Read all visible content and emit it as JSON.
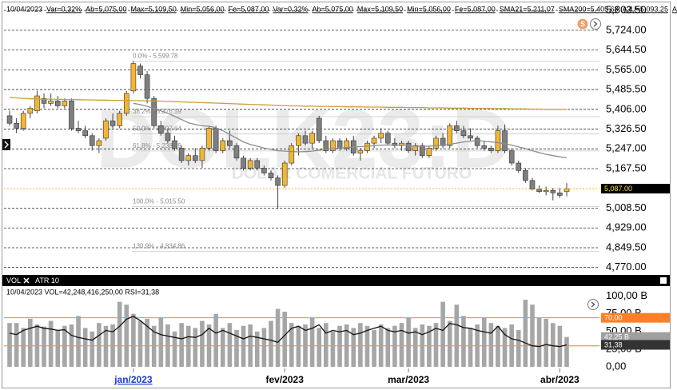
{
  "chart_data": [
    {
      "type": "candlestick",
      "info": [
        "10/04/2023",
        "Var=0,32%",
        "Ab=5,075,00",
        "Max=5,109,50",
        "Min=5,056,00",
        "Fe=5,087,00",
        "Var=0,32%",
        "Ab=5,075,00",
        "Max=5,109,50",
        "Min=5,056,00",
        "Fe=5,087,00",
        "SMA21=5,211,07",
        "SMA200=5,405,68",
        "AJU=5,093,25",
        "AJU=5,093,25"
      ],
      "watermark": "DOLK23:D",
      "watermark_subtitle": "DOLAR COMERCIAL FUTURO",
      "badge": "S",
      "ylim": [
        4753,
        5820
      ],
      "yticks": [
        {
          "value": 5803.5,
          "label": "5,803.50"
        },
        {
          "value": 5724,
          "label": "5,724.00"
        },
        {
          "value": 5644.5,
          "label": "5,644.50"
        },
        {
          "value": 5565,
          "label": "5,565.00"
        },
        {
          "value": 5485.5,
          "label": "5,485.50"
        },
        {
          "value": 5406,
          "label": "5,406.00"
        },
        {
          "value": 5326.5,
          "label": "5,326.50"
        },
        {
          "value": 5247,
          "label": "5,247.00"
        },
        {
          "value": 5167.5,
          "label": "5,167.50"
        },
        {
          "value": 5008.5,
          "label": "5,008.50"
        },
        {
          "value": 4929,
          "label": "4,929.00"
        },
        {
          "value": 4849.5,
          "label": "4,849.50"
        },
        {
          "value": 4770,
          "label": "4,770.00"
        }
      ],
      "grid": true,
      "fib_levels": [
        {
          "value": 5599.78,
          "label": "0.0% - 5,599.78"
        },
        {
          "value": 5376.59,
          "label": "38.2% - 5,376.59"
        },
        {
          "value": 5307.64,
          "label": "50.0% - 5,307.64"
        },
        {
          "value": 5238.69,
          "label": "61.8% - 5,238.69"
        },
        {
          "value": 5015.5,
          "label": "100.0% - 5,015.50"
        },
        {
          "value": 4834.86,
          "label": "130.9% - 4,834.86"
        }
      ],
      "series": [
        {
          "up_color": "#f2b632",
          "down_color": "#7f7f7f",
          "tag": "5,087.00",
          "values": [
            [
              5380,
              5400,
              5340,
              5350
            ],
            [
              5350,
              5370,
              5310,
              5330
            ],
            [
              5330,
              5400,
              5320,
              5390
            ],
            [
              5390,
              5420,
              5370,
              5410
            ],
            [
              5400,
              5480,
              5390,
              5460
            ],
            [
              5450,
              5470,
              5410,
              5430
            ],
            [
              5430,
              5470,
              5420,
              5440
            ],
            [
              5440,
              5460,
              5410,
              5420
            ],
            [
              5420,
              5450,
              5410,
              5440
            ],
            [
              5440,
              5450,
              5320,
              5330
            ],
            [
              5330,
              5360,
              5310,
              5320
            ],
            [
              5320,
              5340,
              5290,
              5300
            ],
            [
              5300,
              5310,
              5240,
              5260
            ],
            [
              5260,
              5290,
              5230,
              5280
            ],
            [
              5290,
              5370,
              5280,
              5360
            ],
            [
              5360,
              5390,
              5330,
              5340
            ],
            [
              5340,
              5400,
              5330,
              5390
            ],
            [
              5390,
              5480,
              5380,
              5470
            ],
            [
              5480,
              5600,
              5470,
              5590
            ],
            [
              5580,
              5590,
              5530,
              5545
            ],
            [
              5545,
              5560,
              5430,
              5450
            ],
            [
              5450,
              5460,
              5330,
              5340
            ],
            [
              5340,
              5360,
              5300,
              5310
            ],
            [
              5310,
              5330,
              5270,
              5280
            ],
            [
              5280,
              5300,
              5240,
              5250
            ],
            [
              5250,
              5260,
              5190,
              5200
            ],
            [
              5200,
              5230,
              5180,
              5220
            ],
            [
              5220,
              5250,
              5190,
              5200
            ],
            [
              5200,
              5260,
              5170,
              5250
            ],
            [
              5250,
              5340,
              5240,
              5330
            ],
            [
              5330,
              5340,
              5230,
              5240
            ],
            [
              5240,
              5290,
              5230,
              5280
            ],
            [
              5280,
              5320,
              5250,
              5260
            ],
            [
              5260,
              5270,
              5200,
              5210
            ],
            [
              5210,
              5220,
              5160,
              5170
            ],
            [
              5170,
              5210,
              5160,
              5200
            ],
            [
              5200,
              5210,
              5160,
              5170
            ],
            [
              5170,
              5180,
              5140,
              5150
            ],
            [
              5150,
              5160,
              5120,
              5130
            ],
            [
              5130,
              5140,
              5005,
              5100
            ],
            [
              5100,
              5200,
              5090,
              5190
            ],
            [
              5190,
              5270,
              5180,
              5260
            ],
            [
              5260,
              5310,
              5220,
              5300
            ],
            [
              5300,
              5320,
              5260,
              5270
            ],
            [
              5270,
              5320,
              5250,
              5310
            ],
            [
              5370,
              5380,
              5270,
              5280
            ],
            [
              5280,
              5300,
              5230,
              5240
            ],
            [
              5240,
              5290,
              5230,
              5280
            ],
            [
              5280,
              5290,
              5240,
              5250
            ],
            [
              5250,
              5290,
              5240,
              5280
            ],
            [
              5280,
              5300,
              5220,
              5230
            ],
            [
              5230,
              5250,
              5200,
              5240
            ],
            [
              5240,
              5280,
              5230,
              5270
            ],
            [
              5270,
              5300,
              5250,
              5290
            ],
            [
              5290,
              5330,
              5270,
              5310
            ],
            [
              5310,
              5320,
              5260,
              5270
            ],
            [
              5270,
              5290,
              5250,
              5260
            ],
            [
              5260,
              5280,
              5240,
              5270
            ],
            [
              5270,
              5280,
              5230,
              5240
            ],
            [
              5240,
              5270,
              5220,
              5260
            ],
            [
              5260,
              5270,
              5210,
              5220
            ],
            [
              5220,
              5260,
              5210,
              5250
            ],
            [
              5250,
              5300,
              5240,
              5290
            ],
            [
              5290,
              5310,
              5250,
              5260
            ],
            [
              5260,
              5350,
              5250,
              5340
            ],
            [
              5340,
              5360,
              5310,
              5320
            ],
            [
              5320,
              5340,
              5290,
              5300
            ],
            [
              5300,
              5330,
              5280,
              5290
            ],
            [
              5290,
              5300,
              5250,
              5260
            ],
            [
              5260,
              5280,
              5240,
              5250
            ],
            [
              5250,
              5260,
              5230,
              5240
            ],
            [
              5240,
              5340,
              5230,
              5320
            ],
            [
              5320,
              5345,
              5230,
              5240
            ],
            [
              5240,
              5250,
              5180,
              5190
            ],
            [
              5190,
              5200,
              5150,
              5160
            ],
            [
              5160,
              5170,
              5110,
              5120
            ],
            [
              5120,
              5130,
              5080,
              5085
            ],
            [
              5085,
              5100,
              5070,
              5075
            ],
            [
              5075,
              5095,
              5060,
              5080
            ],
            [
              5080,
              5090,
              5040,
              5070
            ],
            [
              5070,
              5090,
              5050,
              5060
            ],
            [
              5075,
              5109.5,
              5056,
              5087
            ]
          ]
        },
        {
          "type": "line",
          "color": "#8c8c8c",
          "values": [
            null,
            null,
            null,
            null,
            null,
            null,
            null,
            null,
            null,
            null,
            null,
            null,
            null,
            null,
            null,
            null,
            null,
            null,
            5430,
            5425,
            5418,
            5410,
            5400,
            5390,
            5378,
            5365,
            5352,
            5345,
            5340,
            5338,
            5332,
            5320,
            5305,
            5290,
            5275,
            5265,
            5258,
            5250,
            5245,
            5240,
            5238,
            5236,
            5235,
            5236,
            5238,
            5242,
            5245,
            5248,
            5250,
            5252,
            5255,
            5256,
            5258,
            5260,
            5262,
            5263,
            5262,
            5261,
            5260,
            5258,
            5257,
            5258,
            5260,
            5262,
            5265,
            5270,
            5275,
            5278,
            5280,
            5278,
            5275,
            5272,
            5268,
            5262,
            5255,
            5248,
            5240,
            5232,
            5225,
            5220,
            5215,
            5211.07
          ]
        },
        {
          "type": "line",
          "color": "#c9a03a",
          "values": [
            5455,
            5452,
            5450,
            5448,
            5448,
            5447,
            5447,
            5446,
            5446,
            5445,
            5445,
            5444,
            5444,
            5443,
            5443,
            5442,
            5442,
            5442,
            5441,
            5441,
            5440,
            5440,
            5439,
            5438,
            5437,
            5436,
            5435,
            5434,
            5433,
            5432,
            5431,
            5430,
            5429,
            5428,
            5427,
            5426,
            5425,
            5424,
            5423,
            5422,
            5421,
            5420,
            5420,
            5419,
            5419,
            5418,
            5418,
            5417,
            5417,
            5416,
            5416,
            5416,
            5415,
            5415,
            5415,
            5414,
            5414,
            5414,
            5413,
            5413,
            5413,
            5412,
            5412,
            5412,
            5411,
            5411,
            5411,
            5410,
            5410,
            5410,
            5409,
            5409,
            5409,
            5408,
            5408,
            5408,
            5407,
            5407,
            5406,
            5406,
            5406,
            5405.68
          ]
        }
      ]
    },
    {
      "type": "bar",
      "tabs": [
        "VOL",
        "ATR 10"
      ],
      "info": [
        "10/04/2023 VOL=42,248,416,250,00 RSI=31,38"
      ],
      "categories": [
        null,
        null,
        null,
        null,
        null,
        null,
        null,
        null,
        null,
        null,
        null,
        null,
        null,
        null,
        null,
        null,
        null,
        null,
        "jan/2023",
        null,
        null,
        null,
        null,
        null,
        null,
        null,
        null,
        null,
        null,
        null,
        null,
        null,
        null,
        null,
        null,
        null,
        null,
        null,
        null,
        null,
        "fev/2023",
        null,
        null,
        null,
        null,
        null,
        null,
        null,
        null,
        null,
        null,
        null,
        null,
        null,
        null,
        null,
        null,
        null,
        "mar/2023",
        null,
        null,
        null,
        null,
        null,
        null,
        null,
        null,
        null,
        null,
        null,
        null,
        null,
        null,
        null,
        null,
        null,
        null,
        null,
        null,
        null,
        "abr/2023",
        null
      ],
      "ylim": [
        0,
        112
      ],
      "yticks": [
        {
          "value": 100,
          "label": "100,00 B"
        },
        {
          "value": 75,
          "label": "75,00 B"
        },
        {
          "value": 50,
          "label": "50,00 B"
        },
        {
          "value": 25,
          "label": "25,00 B"
        },
        {
          "value": 0,
          "label": "0,00"
        }
      ],
      "grid": false,
      "y2lim": [
        0,
        113
      ],
      "levels": [
        {
          "value": 70,
          "label": "70,00"
        },
        30
      ],
      "level_color": "#ff7f27",
      "series": [
        {
          "color": "#a6a6a6",
          "tag": "42,25 B",
          "values": [
            62,
            62,
            55,
            68,
            60,
            57,
            65,
            52,
            58,
            60,
            72,
            55,
            50,
            62,
            58,
            60,
            92,
            88,
            75,
            65,
            68,
            58,
            70,
            60,
            50,
            62,
            58,
            55,
            65,
            60,
            75,
            55,
            62,
            52,
            58,
            60,
            50,
            55,
            65,
            82,
            78,
            62,
            58,
            60,
            70,
            55,
            62,
            50,
            58,
            60,
            55,
            62,
            58,
            52,
            60,
            55,
            58,
            62,
            70,
            55,
            60,
            58,
            62,
            92,
            65,
            88,
            72,
            55,
            60,
            70,
            62,
            58,
            55,
            60,
            52,
            95,
            88,
            70,
            68,
            62,
            58,
            42.25
          ]
        },
        {
          "type": "line",
          "axis": "y2",
          "color": "#111111",
          "tag": "31,38",
          "values": [
            48,
            46,
            52,
            55,
            58,
            55,
            54,
            52,
            53,
            45,
            42,
            40,
            38,
            45,
            52,
            50,
            58,
            68,
            72,
            66,
            58,
            50,
            46,
            44,
            42,
            40,
            43,
            42,
            46,
            55,
            48,
            52,
            48,
            44,
            40,
            44,
            42,
            40,
            38,
            35,
            45,
            55,
            58,
            52,
            55,
            60,
            48,
            52,
            50,
            52,
            46,
            48,
            52,
            55,
            58,
            52,
            50,
            52,
            48,
            50,
            46,
            50,
            55,
            52,
            62,
            60,
            56,
            55,
            52,
            50,
            48,
            58,
            46,
            40,
            38,
            34,
            30,
            29,
            32,
            30,
            29,
            31.38
          ]
        }
      ]
    }
  ]
}
